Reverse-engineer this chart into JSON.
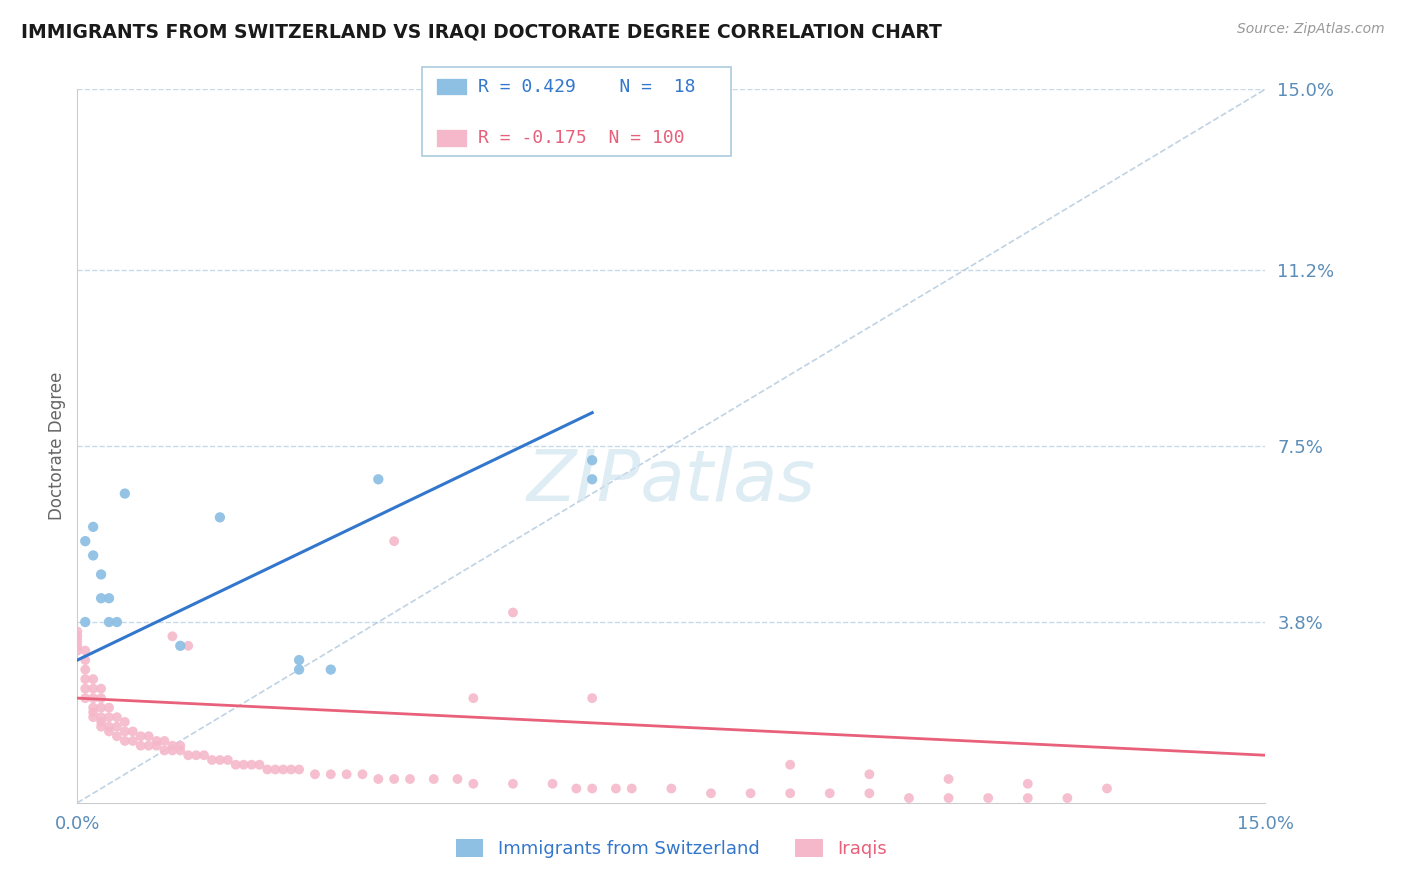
{
  "title": "IMMIGRANTS FROM SWITZERLAND VS IRAQI DOCTORATE DEGREE CORRELATION CHART",
  "source": "Source: ZipAtlas.com",
  "ylabel": "Doctorate Degree",
  "x_min": 0.0,
  "x_max": 0.15,
  "y_min": 0.0,
  "y_max": 0.15,
  "x_ticks": [
    0.0,
    0.15
  ],
  "x_tick_labels": [
    "0.0%",
    "15.0%"
  ],
  "y_ticks": [
    0.0,
    0.038,
    0.075,
    0.112,
    0.15
  ],
  "y_tick_labels": [
    "",
    "3.8%",
    "7.5%",
    "11.2%",
    "15.0%"
  ],
  "grid_color": "#c8daea",
  "background_color": "#ffffff",
  "color_swiss": "#8ec0e4",
  "color_iraqi": "#f5b8cb",
  "R_swiss": 0.429,
  "N_swiss": 18,
  "R_iraqi": -0.175,
  "N_iraqi": 100,
  "legend_label_swiss": "Immigrants from Switzerland",
  "legend_label_iraqi": "Iraqis",
  "swiss_trend_x0": 0.0,
  "swiss_trend_y0": 0.03,
  "swiss_trend_x1": 0.065,
  "swiss_trend_y1": 0.082,
  "iraqi_trend_x0": 0.0,
  "iraqi_trend_y0": 0.022,
  "iraqi_trend_x1": 0.15,
  "iraqi_trend_y1": 0.01,
  "swiss_x": [
    0.001,
    0.001,
    0.002,
    0.002,
    0.003,
    0.003,
    0.004,
    0.004,
    0.005,
    0.006,
    0.013,
    0.018,
    0.028,
    0.028,
    0.032,
    0.038,
    0.065,
    0.065
  ],
  "swiss_y": [
    0.038,
    0.055,
    0.052,
    0.058,
    0.043,
    0.048,
    0.038,
    0.043,
    0.038,
    0.065,
    0.033,
    0.06,
    0.028,
    0.03,
    0.028,
    0.068,
    0.068,
    0.072
  ],
  "iraqi_x": [
    0.0,
    0.0,
    0.0,
    0.0,
    0.0,
    0.001,
    0.001,
    0.001,
    0.001,
    0.001,
    0.001,
    0.002,
    0.002,
    0.002,
    0.002,
    0.002,
    0.002,
    0.003,
    0.003,
    0.003,
    0.003,
    0.003,
    0.003,
    0.004,
    0.004,
    0.004,
    0.004,
    0.005,
    0.005,
    0.005,
    0.006,
    0.006,
    0.006,
    0.007,
    0.007,
    0.008,
    0.008,
    0.009,
    0.009,
    0.01,
    0.01,
    0.011,
    0.011,
    0.012,
    0.012,
    0.013,
    0.013,
    0.014,
    0.015,
    0.016,
    0.017,
    0.018,
    0.019,
    0.02,
    0.021,
    0.022,
    0.023,
    0.024,
    0.025,
    0.026,
    0.027,
    0.028,
    0.03,
    0.032,
    0.034,
    0.036,
    0.038,
    0.04,
    0.042,
    0.045,
    0.048,
    0.05,
    0.055,
    0.055,
    0.06,
    0.063,
    0.065,
    0.068,
    0.07,
    0.075,
    0.08,
    0.085,
    0.09,
    0.095,
    0.1,
    0.105,
    0.11,
    0.115,
    0.12,
    0.125,
    0.012,
    0.014,
    0.04,
    0.05,
    0.065,
    0.09,
    0.1,
    0.11,
    0.12,
    0.13
  ],
  "iraqi_y": [
    0.032,
    0.033,
    0.034,
    0.035,
    0.036,
    0.022,
    0.024,
    0.026,
    0.028,
    0.03,
    0.032,
    0.018,
    0.019,
    0.02,
    0.022,
    0.024,
    0.026,
    0.016,
    0.017,
    0.018,
    0.02,
    0.022,
    0.024,
    0.015,
    0.016,
    0.018,
    0.02,
    0.014,
    0.016,
    0.018,
    0.013,
    0.015,
    0.017,
    0.013,
    0.015,
    0.012,
    0.014,
    0.012,
    0.014,
    0.012,
    0.013,
    0.011,
    0.013,
    0.011,
    0.012,
    0.011,
    0.012,
    0.01,
    0.01,
    0.01,
    0.009,
    0.009,
    0.009,
    0.008,
    0.008,
    0.008,
    0.008,
    0.007,
    0.007,
    0.007,
    0.007,
    0.007,
    0.006,
    0.006,
    0.006,
    0.006,
    0.005,
    0.005,
    0.005,
    0.005,
    0.005,
    0.004,
    0.004,
    0.04,
    0.004,
    0.003,
    0.003,
    0.003,
    0.003,
    0.003,
    0.002,
    0.002,
    0.002,
    0.002,
    0.002,
    0.001,
    0.001,
    0.001,
    0.001,
    0.001,
    0.035,
    0.033,
    0.055,
    0.022,
    0.022,
    0.008,
    0.006,
    0.005,
    0.004,
    0.003
  ]
}
